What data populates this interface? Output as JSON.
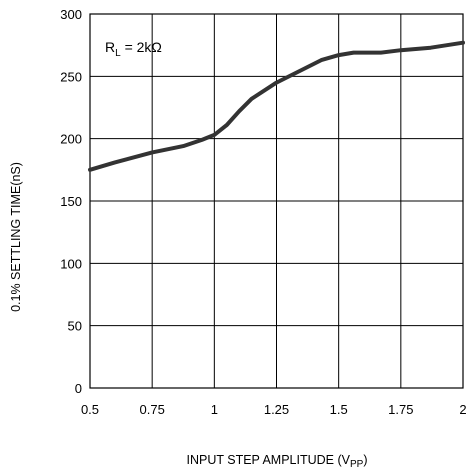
{
  "chart_data": {
    "type": "line",
    "title": "",
    "xlabel_main": "INPUT STEP AMPLITUDE (V",
    "xlabel_sub": "PP",
    "xlabel_close": ")",
    "ylabel": "0.1% SETTLING TIME(nS)",
    "xlim": [
      0.5,
      2
    ],
    "ylim": [
      0,
      300
    ],
    "x_ticks": [
      0.5,
      0.75,
      1,
      1.25,
      1.5,
      1.75,
      2
    ],
    "x_tick_labels": [
      "0.5",
      "0.75",
      "1",
      "1.25",
      "1.5",
      "1.75",
      "2"
    ],
    "y_ticks": [
      0,
      50,
      100,
      150,
      200,
      250,
      300
    ],
    "y_tick_labels": [
      "0",
      "50",
      "100",
      "150",
      "200",
      "250",
      "300"
    ],
    "grid": true,
    "annotation": {
      "prefix": "R",
      "sub": "L",
      "suffix": " = 2kΩ"
    },
    "series": [
      {
        "color": "#333333",
        "x": [
          0.5,
          0.6,
          0.75,
          0.875,
          0.95,
          1.0,
          1.05,
          1.1,
          1.15,
          1.25,
          1.35,
          1.43,
          1.5,
          1.56,
          1.67,
          1.75,
          1.87,
          2.0
        ],
        "y": [
          175,
          181,
          189,
          194,
          199,
          203,
          211,
          222,
          232,
          245,
          255,
          263,
          267,
          269,
          269,
          271,
          273,
          277
        ]
      }
    ]
  }
}
